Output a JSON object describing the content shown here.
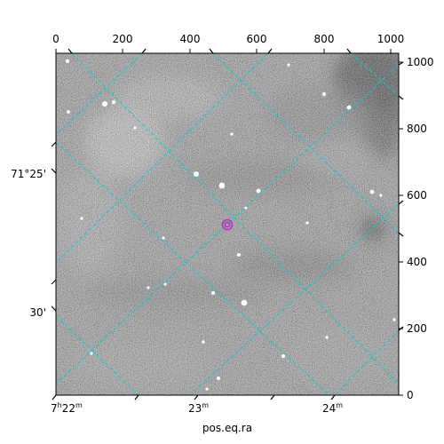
{
  "chart_data": {
    "type": "sky-image",
    "pixel_x_axis": {
      "range": [
        0,
        1024
      ],
      "tick_labels": [
        "0",
        "200",
        "400",
        "600",
        "800",
        "1000"
      ]
    },
    "pixel_y_axis": {
      "range": [
        0,
        1024
      ],
      "tick_labels": [
        "0",
        "200",
        "400",
        "600",
        "800",
        "1000"
      ]
    },
    "ra_ticks": [
      {
        "label": "7h22m",
        "main": "7",
        "sup": "h",
        "rest": "22",
        "sup2": "m"
      },
      {
        "label": "23m",
        "main": "23",
        "sup": "m"
      },
      {
        "label": "24m",
        "main": "24",
        "sup": "m"
      }
    ],
    "dec_ticks": [
      {
        "label": "71°25'"
      },
      {
        "label": "30'"
      }
    ],
    "xlabel": "pos.eq.ra",
    "ylabel": "",
    "grid": true,
    "grid_color": "#00d0d0",
    "marker_color": "#b030c0",
    "marker_pixel": [
      511,
      508
    ]
  }
}
